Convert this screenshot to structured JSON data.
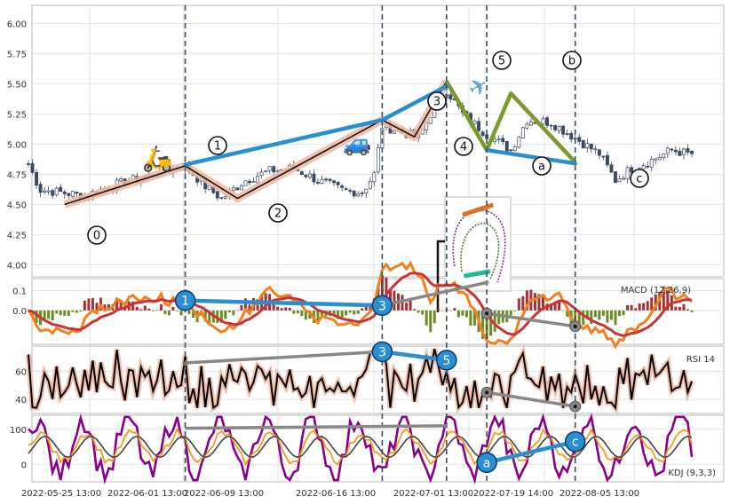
{
  "chart_data": [
    {
      "type": "candlestick",
      "panel": "price",
      "ylim": [
        3.9,
        6.15
      ],
      "yticks": [
        "4.00",
        "4.25",
        "4.50",
        "4.75",
        "5.00",
        "5.25",
        "5.50",
        "5.75",
        "6.00"
      ],
      "ytick_values": [
        4.0,
        4.25,
        4.5,
        4.75,
        5.0,
        5.25,
        5.5,
        5.75,
        6.0
      ],
      "x_tick_labels": [
        "2022-05-25 13:00",
        "2022-06-01 13:00",
        "2022-06-09 13:00",
        "2022-06-16 13:00",
        "2022-07-01 13:00",
        "2022-07-19 14:00",
        "2022-08-05 13:00"
      ],
      "close_anchors": [
        {
          "i": 0,
          "v": 4.83
        },
        {
          "i": 3,
          "v": 4.62
        },
        {
          "i": 8,
          "v": 4.6
        },
        {
          "i": 14,
          "v": 4.57
        },
        {
          "i": 20,
          "v": 4.65
        },
        {
          "i": 28,
          "v": 4.72
        },
        {
          "i": 34,
          "v": 4.78
        },
        {
          "i": 39,
          "v": 4.82
        },
        {
          "i": 44,
          "v": 4.65
        },
        {
          "i": 48,
          "v": 4.55
        },
        {
          "i": 54,
          "v": 4.7
        },
        {
          "i": 60,
          "v": 4.78
        },
        {
          "i": 66,
          "v": 4.8
        },
        {
          "i": 72,
          "v": 4.7
        },
        {
          "i": 78,
          "v": 4.62
        },
        {
          "i": 83,
          "v": 4.6
        },
        {
          "i": 86,
          "v": 4.75
        },
        {
          "i": 88,
          "v": 5.15
        },
        {
          "i": 93,
          "v": 5.1
        },
        {
          "i": 97,
          "v": 5.05
        },
        {
          "i": 100,
          "v": 5.25
        },
        {
          "i": 104,
          "v": 5.45
        },
        {
          "i": 108,
          "v": 5.25
        },
        {
          "i": 114,
          "v": 5.08
        },
        {
          "i": 120,
          "v": 4.95
        },
        {
          "i": 124,
          "v": 5.2
        },
        {
          "i": 130,
          "v": 5.18
        },
        {
          "i": 136,
          "v": 5.05
        },
        {
          "i": 142,
          "v": 4.92
        },
        {
          "i": 146,
          "v": 4.7
        },
        {
          "i": 150,
          "v": 4.8
        },
        {
          "i": 154,
          "v": 4.85
        },
        {
          "i": 160,
          "v": 4.95
        },
        {
          "i": 164,
          "v": 4.92
        }
      ],
      "wave_points": [
        {
          "label": "0",
          "i": 9,
          "v": 4.5
        },
        {
          "label": "1",
          "i": 39,
          "v": 4.82
        },
        {
          "label": "2",
          "i": 52,
          "v": 4.55
        },
        {
          "label": "3",
          "i": 88,
          "v": 5.2
        },
        {
          "label": "4",
          "i": 96,
          "v": 5.06
        },
        {
          "label": "5",
          "i": 104,
          "v": 5.52
        },
        {
          "label": "a",
          "i": 114,
          "v": 4.95
        },
        {
          "label": "b",
          "i": 120,
          "v": 5.42
        },
        {
          "label": "c",
          "i": 136,
          "v": 4.85
        }
      ],
      "wave_labels": [
        "0",
        "1",
        "2",
        "3",
        "4",
        "5",
        "a",
        "b",
        "c"
      ],
      "trend_line": [
        {
          "i": 39,
          "v": 4.83
        },
        {
          "i": 88,
          "v": 5.2
        },
        {
          "i": 104,
          "v": 5.48
        }
      ],
      "channel_line": [
        {
          "i": 114,
          "v": 4.95
        },
        {
          "i": 136,
          "v": 4.84
        }
      ],
      "vlines_idx": [
        39,
        88,
        104,
        114,
        136
      ]
    },
    {
      "type": "bar+line",
      "panel": "macd",
      "label": "MACD (12,26,9)",
      "ylim": [
        -0.17,
        0.16
      ],
      "yticks": [
        "0.0",
        "0.1"
      ],
      "ytick_values": [
        0.0,
        0.1
      ],
      "divergence_labels": [
        "1",
        "3"
      ],
      "divergence_values": [
        {
          "i": 39,
          "v": 0.05
        },
        {
          "i": 88,
          "v": 0.025
        }
      ]
    },
    {
      "type": "line",
      "panel": "rsi",
      "label": "RSI 14",
      "ylim": [
        30,
        78
      ],
      "yticks": [
        "40",
        "60"
      ],
      "ytick_values": [
        40,
        60
      ],
      "divergence_labels": [
        "3",
        "5"
      ],
      "divergence_values": [
        {
          "i": 88,
          "v": 74
        },
        {
          "i": 104,
          "v": 68
        }
      ]
    },
    {
      "type": "line",
      "panel": "kdj",
      "label": "KDJ (9,3,3)",
      "ylim": [
        -50,
        140
      ],
      "yticks": [
        "0",
        "100"
      ],
      "ytick_values": [
        0,
        100
      ],
      "divergence_labels": [
        "a",
        "c"
      ],
      "divergence_values": [
        {
          "i": 114,
          "v": 5
        },
        {
          "i": 136,
          "v": 65
        }
      ]
    }
  ],
  "colors": {
    "wave_black": "#111111",
    "wave_glow": "#f2b8a0",
    "trend_blue": "#2a8fd0",
    "correction_green": "#7a9a2e",
    "macd_bar_up": "#a83232",
    "macd_bar_down": "#6b8e23",
    "macd_line": "#f08020",
    "signal_line": "#cc3333",
    "rsi_line": "#000000",
    "k_line": "#f59a1b",
    "d_line": "#444444",
    "j_line": "#8b008b",
    "divergence_gray": "#888888",
    "vline": "#3d4f66"
  }
}
